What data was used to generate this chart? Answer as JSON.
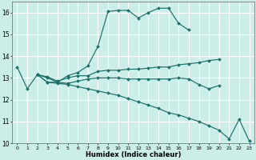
{
  "xlabel": "Humidex (Indice chaleur)",
  "xlim": [
    -0.5,
    23.5
  ],
  "ylim": [
    10,
    16.5
  ],
  "yticks": [
    10,
    11,
    12,
    13,
    14,
    15,
    16
  ],
  "xticks": [
    0,
    1,
    2,
    3,
    4,
    5,
    6,
    7,
    8,
    9,
    10,
    11,
    12,
    13,
    14,
    15,
    16,
    17,
    18,
    19,
    20,
    21,
    22,
    23
  ],
  "bg_color": "#cceee8",
  "grid_color": "#ffffff",
  "line_color": "#1a7068",
  "lines": [
    {
      "x": [
        0,
        1,
        2,
        3,
        4,
        5,
        6,
        7,
        8,
        9,
        10,
        11,
        12,
        13,
        14,
        15,
        16,
        17
      ],
      "y": [
        13.5,
        12.5,
        13.15,
        13.0,
        12.8,
        13.1,
        13.25,
        13.55,
        14.45,
        16.05,
        16.1,
        16.1,
        15.75,
        16.0,
        16.2,
        16.2,
        15.5,
        15.2
      ]
    },
    {
      "x": [
        2,
        3,
        4,
        5,
        6,
        7,
        8,
        9,
        10,
        11,
        12,
        13,
        14,
        15,
        16,
        17,
        18,
        19,
        20
      ],
      "y": [
        13.15,
        13.05,
        12.85,
        13.0,
        13.1,
        13.1,
        13.3,
        13.35,
        13.35,
        13.4,
        13.4,
        13.45,
        13.5,
        13.5,
        13.6,
        13.65,
        13.7,
        13.8,
        13.85
      ]
    },
    {
      "x": [
        2,
        3,
        4,
        5,
        6,
        7,
        8,
        9,
        10,
        11,
        12,
        13,
        14,
        15,
        16,
        17,
        18,
        19,
        20
      ],
      "y": [
        13.15,
        12.8,
        12.8,
        12.75,
        12.85,
        12.95,
        13.0,
        13.0,
        13.0,
        12.95,
        12.95,
        12.95,
        12.95,
        12.95,
        13.0,
        12.95,
        12.7,
        12.5,
        12.65
      ]
    },
    {
      "x": [
        2,
        3,
        4,
        5,
        6,
        7,
        8,
        9,
        10,
        11,
        12,
        13,
        14,
        15,
        16,
        17,
        18,
        19,
        20,
        21,
        22,
        23
      ],
      "y": [
        13.15,
        12.8,
        12.75,
        12.7,
        12.6,
        12.5,
        12.4,
        12.3,
        12.2,
        12.05,
        11.9,
        11.75,
        11.6,
        11.4,
        11.3,
        11.15,
        11.0,
        10.8,
        10.6,
        10.2,
        11.1,
        10.1
      ]
    }
  ]
}
